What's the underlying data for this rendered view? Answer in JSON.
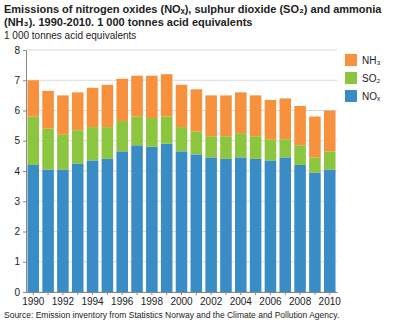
{
  "chart_data": {
    "type": "bar",
    "title": "Emissions of nitrogen oxides (NOₓ), sulphur dioxide (SO₂) and ammonia (NH₃). 1990-2010. 1 000 tonnes acid equivalents",
    "subtitle": "1 000 tonnes acid equivalents",
    "source": "Source: Emission inventory from Statistics Norway and the Climate and Pollution Agency.",
    "categories": [
      "1990",
      null,
      "1992",
      null,
      "1994",
      null,
      "1996",
      null,
      "1998",
      null,
      "2000",
      null,
      "2002",
      null,
      "2004",
      null,
      "2006",
      null,
      "2008",
      null,
      "2010"
    ],
    "series": [
      {
        "name": "NOₓ",
        "color": "#3a8cc4",
        "values": [
          4.2,
          4.05,
          4.05,
          4.25,
          4.35,
          4.4,
          4.65,
          4.85,
          4.8,
          4.9,
          4.65,
          4.55,
          4.45,
          4.4,
          4.45,
          4.4,
          4.35,
          4.45,
          4.2,
          3.95,
          4.05
        ]
      },
      {
        "name": "SO₂",
        "color": "#8cc63f",
        "values": [
          1.6,
          1.35,
          1.15,
          1.1,
          1.1,
          1.05,
          1.0,
          0.95,
          0.95,
          0.9,
          0.8,
          0.75,
          0.7,
          0.75,
          0.8,
          0.75,
          0.7,
          0.6,
          0.65,
          0.5,
          0.6
        ]
      },
      {
        "name": "NH₃",
        "color": "#f7913d",
        "values": [
          1.2,
          1.25,
          1.3,
          1.25,
          1.3,
          1.4,
          1.4,
          1.35,
          1.4,
          1.4,
          1.4,
          1.4,
          1.35,
          1.35,
          1.35,
          1.35,
          1.3,
          1.35,
          1.3,
          1.35,
          1.35
        ]
      }
    ],
    "ylim": [
      0,
      8
    ],
    "yticks": [
      0,
      1,
      2,
      3,
      4,
      5,
      6,
      7,
      8
    ],
    "stacked": true,
    "grid": true,
    "legend": "right"
  }
}
